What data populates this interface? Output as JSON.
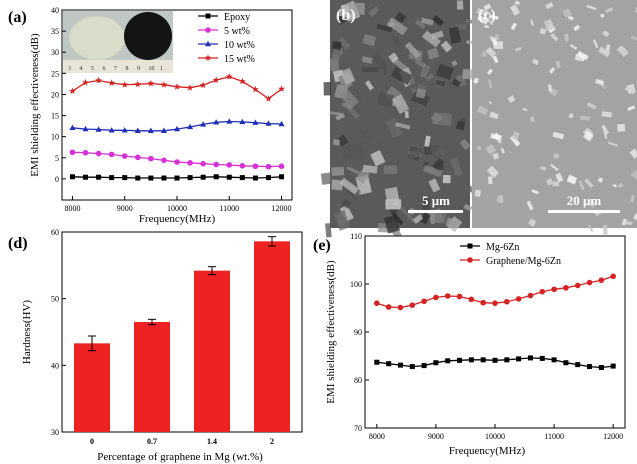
{
  "panels": {
    "a": "(a)",
    "b": "(b)",
    "c": "(c)",
    "d": "(d)",
    "e": "(e)"
  },
  "scale_bars": {
    "b": "5 μm",
    "c": "20 μm"
  },
  "photo_ruler": [
    "3",
    "4",
    "5",
    "6",
    "7",
    "8",
    "9",
    "10",
    "1"
  ],
  "colors": {
    "black": "#000000",
    "magenta": "#d631d6",
    "blue": "#1f2fb8",
    "red": "#d62222",
    "bar": "#ee2222"
  },
  "chart_data": [
    {
      "id": "a",
      "type": "line",
      "title": "",
      "xlabel": "Frequency(MHz)",
      "ylabel": "EMI shielding effectiveness(dB)",
      "xlim": [
        7800,
        12200
      ],
      "ylim": [
        -5,
        40
      ],
      "xticks": [
        8000,
        9000,
        10000,
        11000,
        12000
      ],
      "yticks": [
        0,
        5,
        10,
        15,
        20,
        25,
        30,
        35,
        40
      ],
      "legend_loc": "top-right",
      "x": [
        8000,
        8250,
        8500,
        8750,
        9000,
        9250,
        9500,
        9750,
        10000,
        10250,
        10500,
        10750,
        11000,
        11250,
        11500,
        11750,
        12000
      ],
      "series": [
        {
          "name": "Epoxy",
          "color": "#000000",
          "marker": "square",
          "values": [
            0.5,
            0.4,
            0.4,
            0.3,
            0.3,
            0.2,
            0.2,
            0.2,
            0.2,
            0.3,
            0.4,
            0.5,
            0.4,
            0.3,
            0.2,
            0.3,
            0.5
          ]
        },
        {
          "name": "5 wt%",
          "color": "#d631d6",
          "marker": "circle",
          "values": [
            6.3,
            6.2,
            6.0,
            5.8,
            5.4,
            5.1,
            4.8,
            4.4,
            4.0,
            3.8,
            3.6,
            3.4,
            3.3,
            3.1,
            3.0,
            2.9,
            3.0
          ]
        },
        {
          "name": "10 wt%",
          "color": "#1f2fb8",
          "marker": "triangle",
          "values": [
            12.1,
            11.8,
            11.7,
            11.5,
            11.5,
            11.4,
            11.4,
            11.4,
            11.8,
            12.3,
            12.9,
            13.4,
            13.6,
            13.5,
            13.3,
            13.1,
            13.0
          ]
        },
        {
          "name": "15 wt%",
          "color": "#d62222",
          "marker": "star",
          "values": [
            20.8,
            22.8,
            23.3,
            22.7,
            22.3,
            22.4,
            22.6,
            22.3,
            21.8,
            21.6,
            22.2,
            23.4,
            24.2,
            23.1,
            21.2,
            19.0,
            21.3
          ]
        }
      ]
    },
    {
      "id": "d",
      "type": "bar",
      "title": "",
      "xlabel": "Percentage of graphene in Mg (wt.%)",
      "ylabel": "Hardness(HV)",
      "ylim": [
        30,
        60
      ],
      "yticks": [
        30,
        40,
        50,
        60
      ],
      "categories": [
        "0",
        "0.7",
        "1.4",
        "2"
      ],
      "values": [
        43.3,
        46.5,
        54.2,
        58.6
      ],
      "errors": [
        1.1,
        0.4,
        0.6,
        0.7
      ],
      "color": "#ee2222"
    },
    {
      "id": "e",
      "type": "line",
      "title": "",
      "xlabel": "Frequency(MHz)",
      "ylabel": "EMI shielding effectiveness(dB)",
      "xlim": [
        7800,
        12200
      ],
      "ylim": [
        70,
        110
      ],
      "xticks": [
        8000,
        9000,
        10000,
        11000,
        12000
      ],
      "yticks": [
        70,
        80,
        90,
        100,
        110
      ],
      "legend_loc": "top-center",
      "x": [
        8000,
        8200,
        8400,
        8600,
        8800,
        9000,
        9200,
        9400,
        9600,
        9800,
        10000,
        10200,
        10400,
        10600,
        10800,
        11000,
        11200,
        11400,
        11600,
        11800,
        12000
      ],
      "series": [
        {
          "name": "Mg-6Zn",
          "color": "#000000",
          "marker": "square",
          "values": [
            83.7,
            83.4,
            83.1,
            82.8,
            83.0,
            83.6,
            84.0,
            84.1,
            84.2,
            84.2,
            84.1,
            84.2,
            84.4,
            84.6,
            84.5,
            84.2,
            83.6,
            83.2,
            82.8,
            82.6,
            82.9
          ]
        },
        {
          "name": "Graphene/Mg-6Zn",
          "color": "#d62222",
          "marker": "circle",
          "values": [
            96.0,
            95.2,
            95.1,
            95.6,
            96.4,
            97.2,
            97.5,
            97.4,
            96.8,
            96.1,
            96.0,
            96.3,
            96.9,
            97.6,
            98.4,
            98.9,
            99.2,
            99.7,
            100.3,
            100.8,
            101.6
          ]
        }
      ]
    }
  ]
}
